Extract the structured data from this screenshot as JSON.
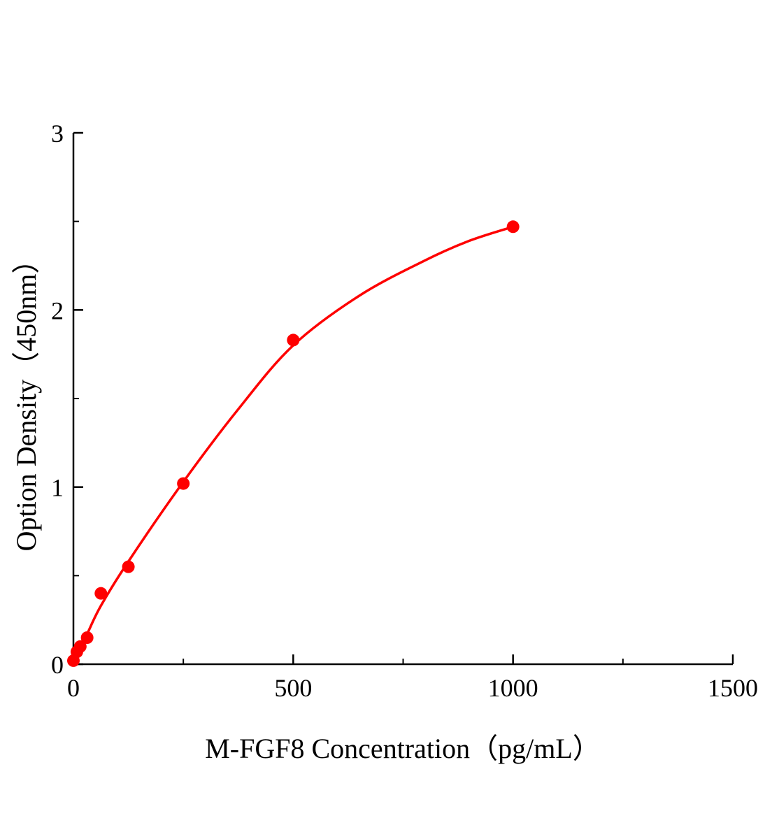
{
  "chart_data": {
    "type": "scatter",
    "title": "",
    "xlabel": "M-FGF8 Concentration（pg/mL）",
    "ylabel": "Option Density（450nm）",
    "xlim": [
      0,
      1500
    ],
    "ylim": [
      0,
      3
    ],
    "x_ticks": [
      0,
      500,
      1000,
      1500
    ],
    "x_minor_ticks": [
      250,
      750,
      1250
    ],
    "y_ticks": [
      0,
      1,
      2,
      3
    ],
    "y_minor_ticks": [
      0.5,
      1.5,
      2.5
    ],
    "grid": false,
    "legend": "none",
    "accent_color": "#fe0000",
    "axis_color": "#000000",
    "series": [
      {
        "name": "M-FGF8 standard points",
        "type": "scatter",
        "color": "#fe0000",
        "marker_radius": 9,
        "points": [
          [
            0,
            0.02
          ],
          [
            7.8,
            0.07
          ],
          [
            15.6,
            0.1
          ],
          [
            31.25,
            0.15
          ],
          [
            62.5,
            0.4
          ],
          [
            125,
            0.55
          ],
          [
            250,
            1.02
          ],
          [
            500,
            1.83
          ],
          [
            1000,
            2.47
          ]
        ]
      },
      {
        "name": "fitted standard curve",
        "type": "line",
        "color": "#fe0000",
        "stroke_width": 3.5,
        "points": [
          [
            0,
            0.0
          ],
          [
            31.25,
            0.17
          ],
          [
            62.5,
            0.33
          ],
          [
            125,
            0.58
          ],
          [
            250,
            1.03
          ],
          [
            375,
            1.44
          ],
          [
            500,
            1.8
          ],
          [
            650,
            2.08
          ],
          [
            800,
            2.28
          ],
          [
            900,
            2.39
          ],
          [
            1000,
            2.47
          ]
        ]
      }
    ]
  }
}
